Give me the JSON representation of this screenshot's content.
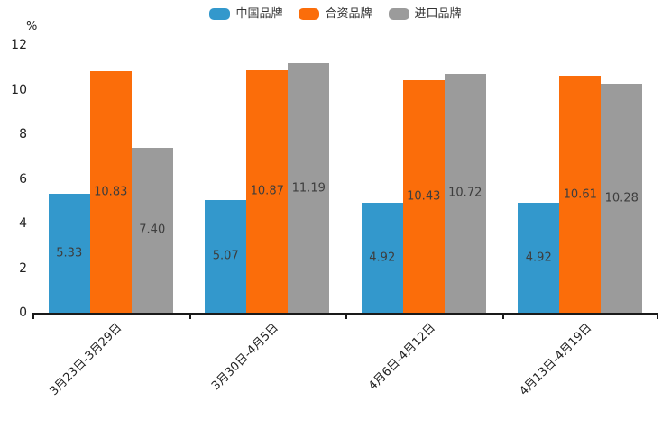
{
  "chart_data": {
    "type": "bar",
    "title": "",
    "unit_label": "%",
    "categories": [
      "3月23日-3月29日",
      "3月30日-4月5日",
      "4月6日-4月12日",
      "4月13日-4月19日"
    ],
    "series": [
      {
        "name": "中国品牌",
        "color": "#3398CC",
        "values": [
          5.33,
          5.07,
          4.92,
          4.92
        ]
      },
      {
        "name": "合资品牌",
        "color": "#FB6D0A",
        "values": [
          10.83,
          10.87,
          10.43,
          10.61
        ]
      },
      {
        "name": "进口品牌",
        "color": "#9B9B9B",
        "values": [
          7.4,
          11.19,
          10.72,
          10.28
        ]
      }
    ],
    "y_ticks": [
      12,
      10,
      8,
      6,
      4,
      2,
      0
    ],
    "ylim": [
      0,
      12
    ],
    "grid": "off",
    "legend_position": "top",
    "value_label_decimals": 2,
    "axis_color": "#1a1a1a",
    "value_label_color": "#3d3d3d"
  }
}
